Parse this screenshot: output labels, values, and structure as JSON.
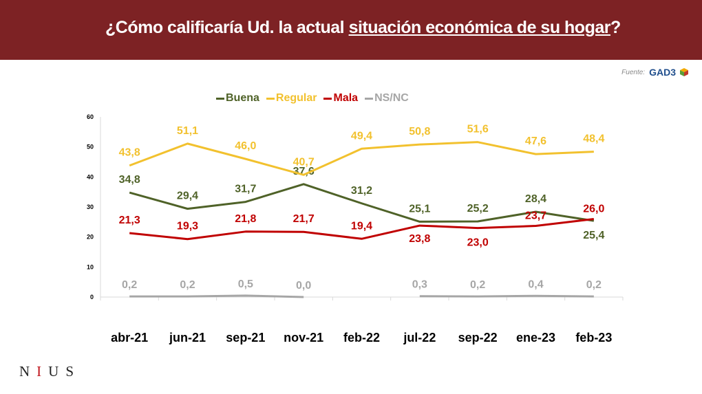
{
  "header": {
    "title_pre": "¿Cómo calificaría Ud. la actual ",
    "title_underlined": "situación económica de su hogar",
    "title_post": "?"
  },
  "source": {
    "label": "Fuente:",
    "logo": "GAD3"
  },
  "brand": {
    "n": "N",
    "i": "I",
    "u": "U",
    "s": "S"
  },
  "chart_data": {
    "type": "line",
    "categories": [
      "abr-21",
      "jun-21",
      "sep-21",
      "nov-21",
      "feb-22",
      "jul-22",
      "sep-22",
      "ene-23",
      "feb-23"
    ],
    "ylim": [
      0,
      60
    ],
    "yticks": [
      0,
      10,
      20,
      30,
      40,
      50,
      60
    ],
    "legend_position": "top",
    "grid": false,
    "series": [
      {
        "name": "Buena",
        "color": "#4f6228",
        "values": [
          34.8,
          29.4,
          31.7,
          37.6,
          31.2,
          25.1,
          25.2,
          28.4,
          25.4
        ],
        "labels": [
          "34,8",
          "29,4",
          "31,7",
          "37,6",
          "31,2",
          "25,1",
          "25,2",
          "28,4",
          "25,4"
        ]
      },
      {
        "name": "Regular",
        "color": "#f2c12e",
        "values": [
          43.8,
          51.1,
          46.0,
          40.7,
          49.4,
          50.8,
          51.6,
          47.6,
          48.4
        ],
        "labels": [
          "43,8",
          "51,1",
          "46,0",
          "40,7",
          "49,4",
          "50,8",
          "51,6",
          "47,6",
          "48,4"
        ]
      },
      {
        "name": "Mala",
        "color": "#c00000",
        "values": [
          21.3,
          19.3,
          21.8,
          21.7,
          19.4,
          23.8,
          23.0,
          23.7,
          26.0
        ],
        "labels": [
          "21,3",
          "19,3",
          "21,8",
          "21,7",
          "19,4",
          "23,8",
          "23,0",
          "23,7",
          "26,0"
        ]
      },
      {
        "name": "NS/NC",
        "color": "#a6a6a6",
        "values": [
          0.2,
          0.2,
          0.5,
          0.0,
          null,
          0.3,
          0.2,
          0.4,
          0.2
        ],
        "labels": [
          "0,2",
          "0,2",
          "0,5",
          "0,0",
          "",
          "0,3",
          "0,2",
          "0,4",
          "0,2"
        ]
      }
    ]
  }
}
